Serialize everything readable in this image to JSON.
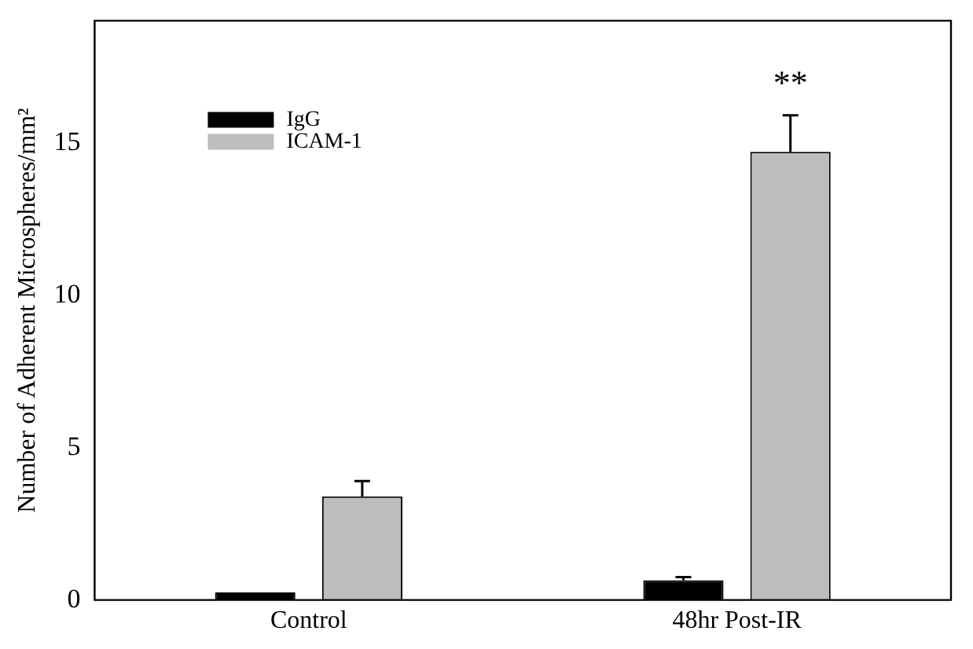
{
  "chart_data": {
    "type": "bar",
    "ylabel": "Number of Adherent Microspheres/mm²",
    "categories": [
      "Control",
      "48hr Post-IR"
    ],
    "series": [
      {
        "name": "IgG",
        "color": "#000000",
        "values": [
          0.25,
          0.65
        ],
        "errors": [
          null,
          0.1
        ]
      },
      {
        "name": "ICAM-1",
        "color": "#bdbdbd",
        "values": [
          3.4,
          14.7
        ],
        "errors": [
          0.5,
          1.2
        ]
      }
    ],
    "ylim": [
      0,
      19
    ],
    "yticks": [
      0,
      5,
      10,
      15
    ],
    "grid": false,
    "legend": "top left",
    "annotations": [
      "**"
    ]
  }
}
